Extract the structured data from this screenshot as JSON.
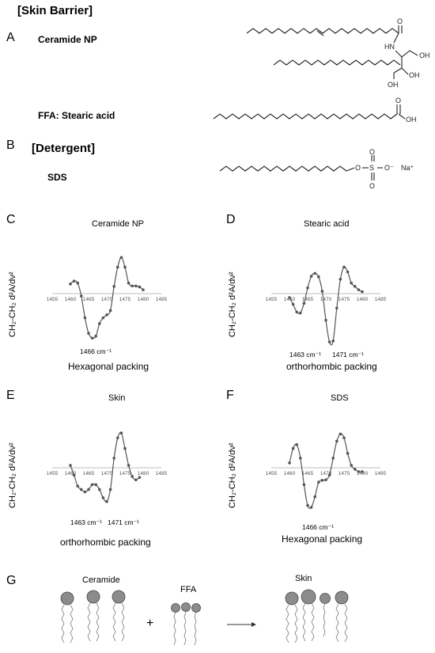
{
  "header": {
    "skin_barrier": "[Skin Barrier]",
    "detergent": "[Detergent]"
  },
  "panel_letters": {
    "A": "A",
    "B": "B",
    "C": "C",
    "D": "D",
    "E": "E",
    "F": "F",
    "G": "G"
  },
  "structures": {
    "ceramide_label": "Ceramide NP",
    "ffa_label": "FFA: Stearic acid",
    "sds_label": "SDS",
    "atoms": {
      "hn": "HN",
      "o": "O",
      "oh": "OH",
      "o_minus": "O⁻",
      "s": "S",
      "na": "Na⁺"
    }
  },
  "y_axis_label": "CH₂-CH₂ d²A/dν²",
  "chart_data": [
    {
      "type": "line",
      "title": "Ceramide NP",
      "ylabel": "CH₂-CH₂ d²A/dν²",
      "x_ticks": [
        1455,
        1460,
        1465,
        1470,
        1475,
        1480,
        1485
      ],
      "xlim": [
        1455,
        1485
      ],
      "ylim": [
        -1,
        1
      ],
      "series": [
        {
          "x": [
            1460,
            1461,
            1462,
            1463,
            1464,
            1465,
            1466,
            1467,
            1468,
            1469,
            1470,
            1471,
            1472,
            1473,
            1474,
            1475,
            1476,
            1477,
            1478,
            1479,
            1480
          ],
          "y": [
            0.2,
            0.26,
            0.22,
            -0.05,
            -0.5,
            -0.82,
            -0.92,
            -0.88,
            -0.62,
            -0.5,
            -0.44,
            -0.35,
            0.15,
            0.55,
            0.75,
            0.55,
            0.22,
            0.16,
            0.16,
            0.14,
            0.08
          ]
        }
      ],
      "annotations": [
        "1466 cm⁻¹"
      ],
      "caption": "Hexagonal packing"
    },
    {
      "type": "line",
      "title": "Stearic acid",
      "ylabel": "CH₂-CH₂ d²A/dν²",
      "x_ticks": [
        1455,
        1460,
        1465,
        1470,
        1475,
        1480,
        1485
      ],
      "xlim": [
        1455,
        1485
      ],
      "ylim": [
        -1,
        1
      ],
      "series": [
        {
          "x": [
            1460,
            1461,
            1462,
            1463,
            1464,
            1465,
            1466,
            1467,
            1468,
            1469,
            1470,
            1471,
            1472,
            1473,
            1474,
            1475,
            1476,
            1477,
            1478,
            1479,
            1480
          ],
          "y": [
            -0.08,
            -0.22,
            -0.38,
            -0.4,
            -0.2,
            0.12,
            0.36,
            0.42,
            0.35,
            0.05,
            -0.55,
            -1.0,
            -0.98,
            -0.3,
            0.3,
            0.55,
            0.45,
            0.22,
            0.15,
            0.08,
            0.04
          ]
        }
      ],
      "annotations": [
        "1463 cm⁻¹",
        "1471 cm⁻¹"
      ],
      "caption": "orthorhombic packing"
    },
    {
      "type": "line",
      "title": "Skin",
      "ylabel": "CH₂-CH₂ d²A/dν²",
      "x_ticks": [
        1455,
        1460,
        1465,
        1470,
        1475,
        1480,
        1485
      ],
      "xlim": [
        1455,
        1485
      ],
      "ylim": [
        -1,
        1
      ],
      "series": [
        {
          "x": [
            1460,
            1461,
            1462,
            1463,
            1464,
            1465,
            1466,
            1467,
            1468,
            1469,
            1470,
            1471,
            1472,
            1473,
            1474,
            1475,
            1476,
            1477,
            1478,
            1479
          ],
          "y": [
            0.05,
            -0.15,
            -0.38,
            -0.45,
            -0.5,
            -0.45,
            -0.35,
            -0.35,
            -0.45,
            -0.62,
            -0.7,
            -0.45,
            0.2,
            0.62,
            0.72,
            0.4,
            0.05,
            -0.18,
            -0.25,
            -0.2
          ]
        }
      ],
      "annotations": [
        "1463 cm⁻¹",
        "1471 cm⁻¹"
      ],
      "caption": "orthorhombic packing"
    },
    {
      "type": "line",
      "title": "SDS",
      "ylabel": "CH₂-CH₂ d²A/dν²",
      "x_ticks": [
        1455,
        1460,
        1465,
        1470,
        1475,
        1480,
        1485
      ],
      "xlim": [
        1455,
        1485
      ],
      "ylim": [
        -1,
        1
      ],
      "series": [
        {
          "x": [
            1460,
            1461,
            1462,
            1463,
            1464,
            1465,
            1466,
            1467,
            1468,
            1469,
            1470,
            1471,
            1472,
            1473,
            1474,
            1475,
            1476,
            1477,
            1478,
            1479,
            1480
          ],
          "y": [
            0.1,
            0.4,
            0.48,
            0.2,
            -0.35,
            -0.78,
            -0.82,
            -0.6,
            -0.3,
            -0.26,
            -0.25,
            -0.15,
            0.2,
            0.55,
            0.7,
            0.62,
            0.3,
            0.05,
            -0.03,
            -0.08,
            -0.08
          ]
        }
      ],
      "annotations": [
        "1466 cm⁻¹"
      ],
      "caption": "Hexagonal packing"
    }
  ],
  "panel_g": {
    "ceramide_label": "Ceramide",
    "ffa_label": "FFA",
    "skin_label": "Skin",
    "plus": "+"
  },
  "colors": {
    "curve": "#555555",
    "points": "#555555",
    "axis": "#aaaaaa",
    "lipid_head": "#8c8c8c"
  }
}
